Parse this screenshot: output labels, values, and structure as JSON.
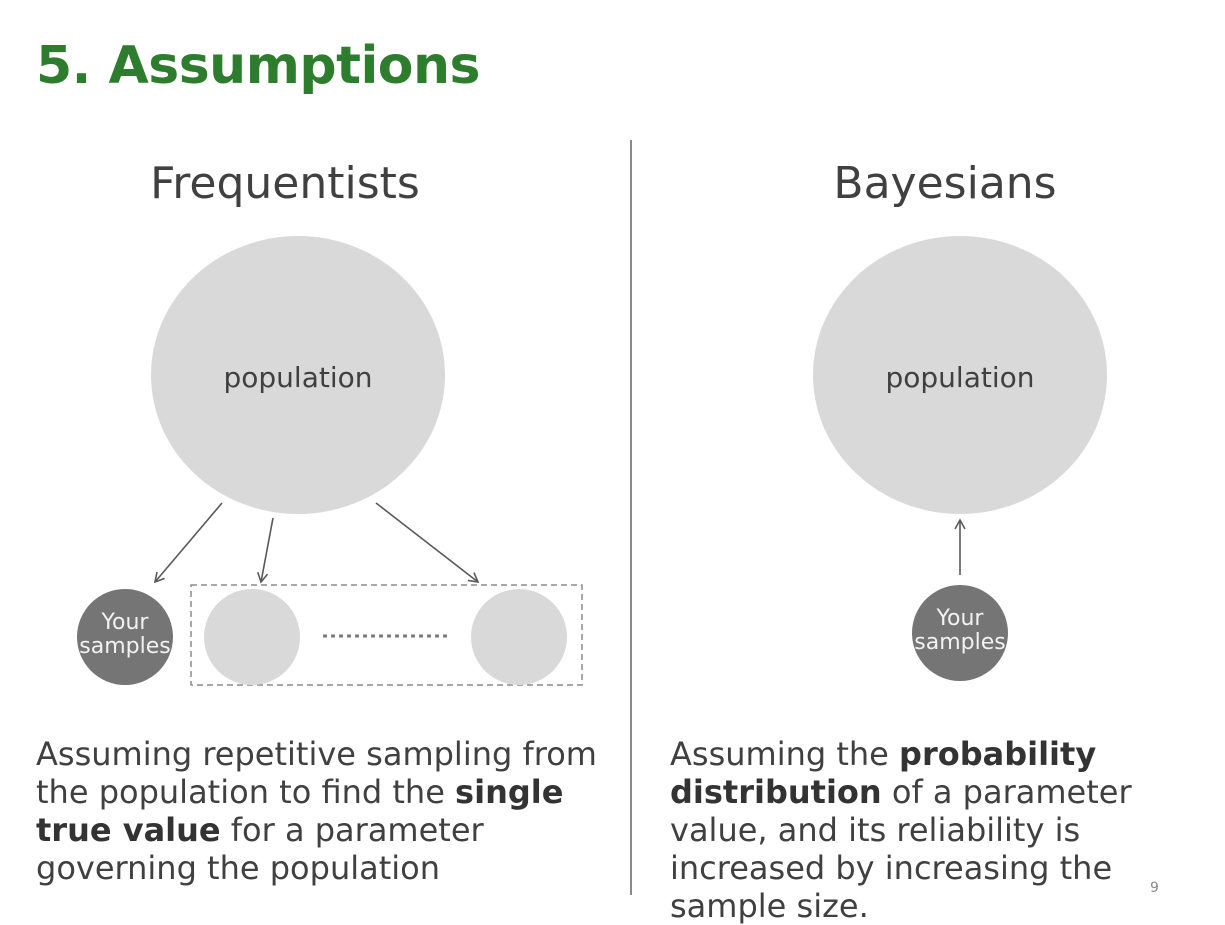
{
  "title": "5. Assumptions",
  "frequentist": {
    "heading": "Frequentists",
    "population_label": "population",
    "sample_label_line1": "Your",
    "sample_label_line2": "samples",
    "caption": {
      "part1": "Assuming repetitive sampling from the population to find the ",
      "bold": "single true value",
      "part2": " for a parameter governing the population"
    }
  },
  "bayesian": {
    "heading": "Bayesians",
    "population_label": "population",
    "sample_label_line1": "Your",
    "sample_label_line2": "samples",
    "caption": {
      "part1": "Assuming the ",
      "bold": "probability distribution",
      "part2": " of a parameter value, and its reliability is increased by increasing the sample size."
    }
  },
  "page_number": "9",
  "colors": {
    "title": "#2e7d2e",
    "population_fill": "#d9d9d9",
    "sample_fill": "#757575",
    "other_sample_fill": "#d9d9d9",
    "arrow": "#595959",
    "dashed_box": "#8c8c8c"
  }
}
